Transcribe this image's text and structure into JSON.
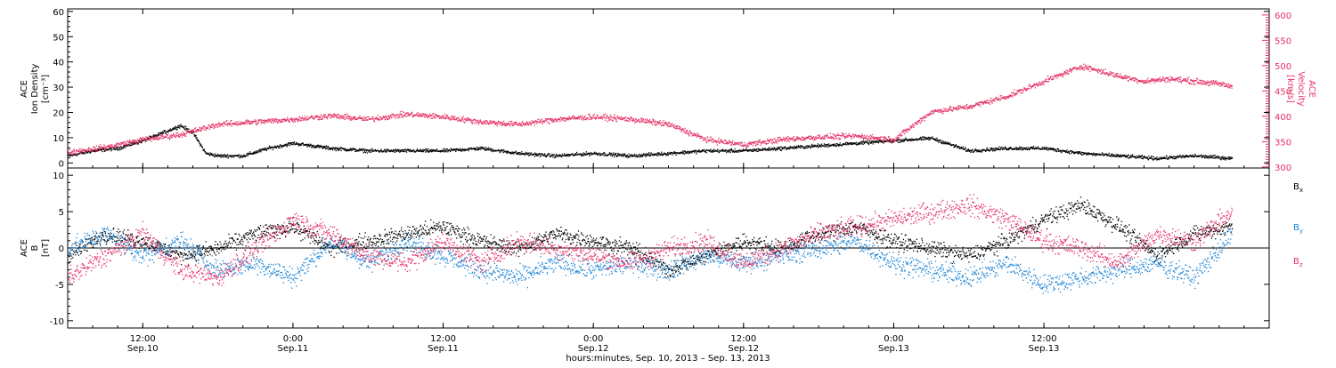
{
  "colors": {
    "black": "#000000",
    "blue": "#1f86d6",
    "red": "#e53266"
  },
  "chart_data": [
    {
      "type": "scatter",
      "panel": "top",
      "ylabel_lines": [
        "ACE",
        "Ion Density",
        "[cm⁻³]"
      ],
      "y2label_lines": [
        "ACE",
        "Velocity",
        "[km/s]"
      ],
      "xlim_hours": [
        6,
        102
      ],
      "ylim": [
        -2,
        61
      ],
      "y_ticks": [
        0,
        10,
        20,
        30,
        40,
        50,
        60
      ],
      "y2lim": [
        298,
        612
      ],
      "y2_ticks": [
        300,
        350,
        400,
        450,
        500,
        550,
        600
      ],
      "series": [
        {
          "axis": "left",
          "color": "black",
          "noise": 1.0,
          "density": 6,
          "x": [
            6,
            8,
            10,
            12,
            14,
            15,
            16,
            17,
            18,
            20,
            22,
            24,
            27,
            30,
            33,
            36,
            39,
            42,
            45,
            48,
            51,
            54,
            57,
            60,
            63,
            66,
            69,
            72,
            75,
            78,
            81,
            84,
            87,
            90,
            93,
            96,
            99
          ],
          "y": [
            3,
            5,
            6,
            9,
            13,
            15,
            12,
            4,
            3,
            3,
            6,
            8,
            6,
            5,
            5,
            5,
            6,
            4,
            3,
            4,
            3,
            4,
            5,
            5,
            6,
            7,
            8,
            9,
            10,
            5,
            6,
            6,
            4,
            3,
            2,
            3,
            2
          ]
        },
        {
          "axis": "right",
          "color": "red",
          "noise": 8,
          "density": 6,
          "x": [
            6,
            9,
            12,
            15,
            18,
            21,
            24,
            27,
            30,
            33,
            36,
            39,
            42,
            45,
            48,
            51,
            54,
            57,
            60,
            63,
            66,
            69,
            72,
            75,
            78,
            81,
            84,
            87,
            90,
            92,
            94,
            96,
            98,
            99
          ],
          "y": [
            330,
            340,
            355,
            365,
            385,
            390,
            395,
            402,
            395,
            405,
            400,
            390,
            385,
            395,
            400,
            395,
            385,
            355,
            345,
            355,
            360,
            362,
            355,
            410,
            420,
            440,
            470,
            500,
            480,
            470,
            475,
            470,
            465,
            460
          ]
        }
      ]
    },
    {
      "type": "scatter",
      "panel": "bottom",
      "ylabel_lines": [
        "ACE",
        "B",
        "[nT]"
      ],
      "xlim_hours": [
        6,
        102
      ],
      "ylim": [
        -11,
        11
      ],
      "y_ticks": [
        -10,
        -5,
        0,
        5,
        10
      ],
      "zero_line": true,
      "series": [
        {
          "name": "Bx",
          "name_base": "B",
          "name_sub": "x",
          "color": "black",
          "noise": 1.6,
          "density": 6,
          "x": [
            6,
            9,
            12,
            15,
            18,
            21,
            24,
            27,
            30,
            33,
            36,
            39,
            42,
            45,
            48,
            51,
            54,
            57,
            60,
            63,
            66,
            69,
            72,
            75,
            78,
            81,
            84,
            87,
            90,
            93,
            96,
            99
          ],
          "y": [
            -1,
            2,
            1,
            -1,
            0,
            2,
            3,
            0,
            1,
            2,
            3,
            1,
            0,
            2,
            1,
            0,
            -3,
            -1,
            1,
            0,
            2,
            3,
            1,
            0,
            -1,
            1,
            4,
            6,
            3,
            -1,
            2,
            3
          ]
        },
        {
          "name": "By",
          "name_base": "B",
          "name_sub": "y",
          "color": "blue",
          "noise": 2.0,
          "density": 6,
          "x": [
            6,
            9,
            12,
            15,
            18,
            21,
            24,
            27,
            30,
            33,
            36,
            39,
            42,
            45,
            48,
            51,
            54,
            57,
            60,
            63,
            66,
            69,
            72,
            75,
            78,
            81,
            84,
            87,
            90,
            93,
            96,
            99
          ],
          "y": [
            0,
            2,
            -1,
            1,
            -3,
            -2,
            -4,
            1,
            -2,
            1,
            -1,
            -3,
            -4,
            -2,
            -3,
            -2,
            -3,
            -1,
            -2,
            -1,
            0,
            1,
            -2,
            -3,
            -4,
            -2,
            -5,
            -4,
            -3,
            -2,
            -4,
            2
          ]
        },
        {
          "name": "Bz",
          "name_base": "B",
          "name_sub": "z",
          "color": "red",
          "noise": 2.0,
          "density": 6,
          "x": [
            6,
            9,
            12,
            15,
            18,
            21,
            24,
            27,
            30,
            33,
            36,
            39,
            42,
            45,
            48,
            51,
            54,
            57,
            60,
            63,
            66,
            69,
            72,
            75,
            78,
            81,
            84,
            87,
            90,
            93,
            96,
            99
          ],
          "y": [
            -4,
            -1,
            2,
            -3,
            -4,
            0,
            4,
            2,
            -1,
            -2,
            1,
            -2,
            1,
            0,
            -1,
            -2,
            0,
            1,
            -2,
            0,
            2,
            3,
            4,
            5,
            6,
            4,
            1,
            0,
            -2,
            2,
            1,
            5
          ]
        }
      ]
    }
  ],
  "x_axis": {
    "ticks": [
      {
        "hours": 12,
        "time": "12:00",
        "date": "Sep.10"
      },
      {
        "hours": 24,
        "time": "0:00",
        "date": "Sep.11"
      },
      {
        "hours": 36,
        "time": "12:00",
        "date": "Sep.11"
      },
      {
        "hours": 48,
        "time": "0:00",
        "date": "Sep.12"
      },
      {
        "hours": 60,
        "time": "12:00",
        "date": "Sep.12"
      },
      {
        "hours": 72,
        "time": "0:00",
        "date": "Sep.13"
      },
      {
        "hours": 84,
        "time": "12:00",
        "date": "Sep.13"
      }
    ],
    "label": "hours:minutes, Sep. 10, 2013 – Sep. 13, 2013"
  }
}
